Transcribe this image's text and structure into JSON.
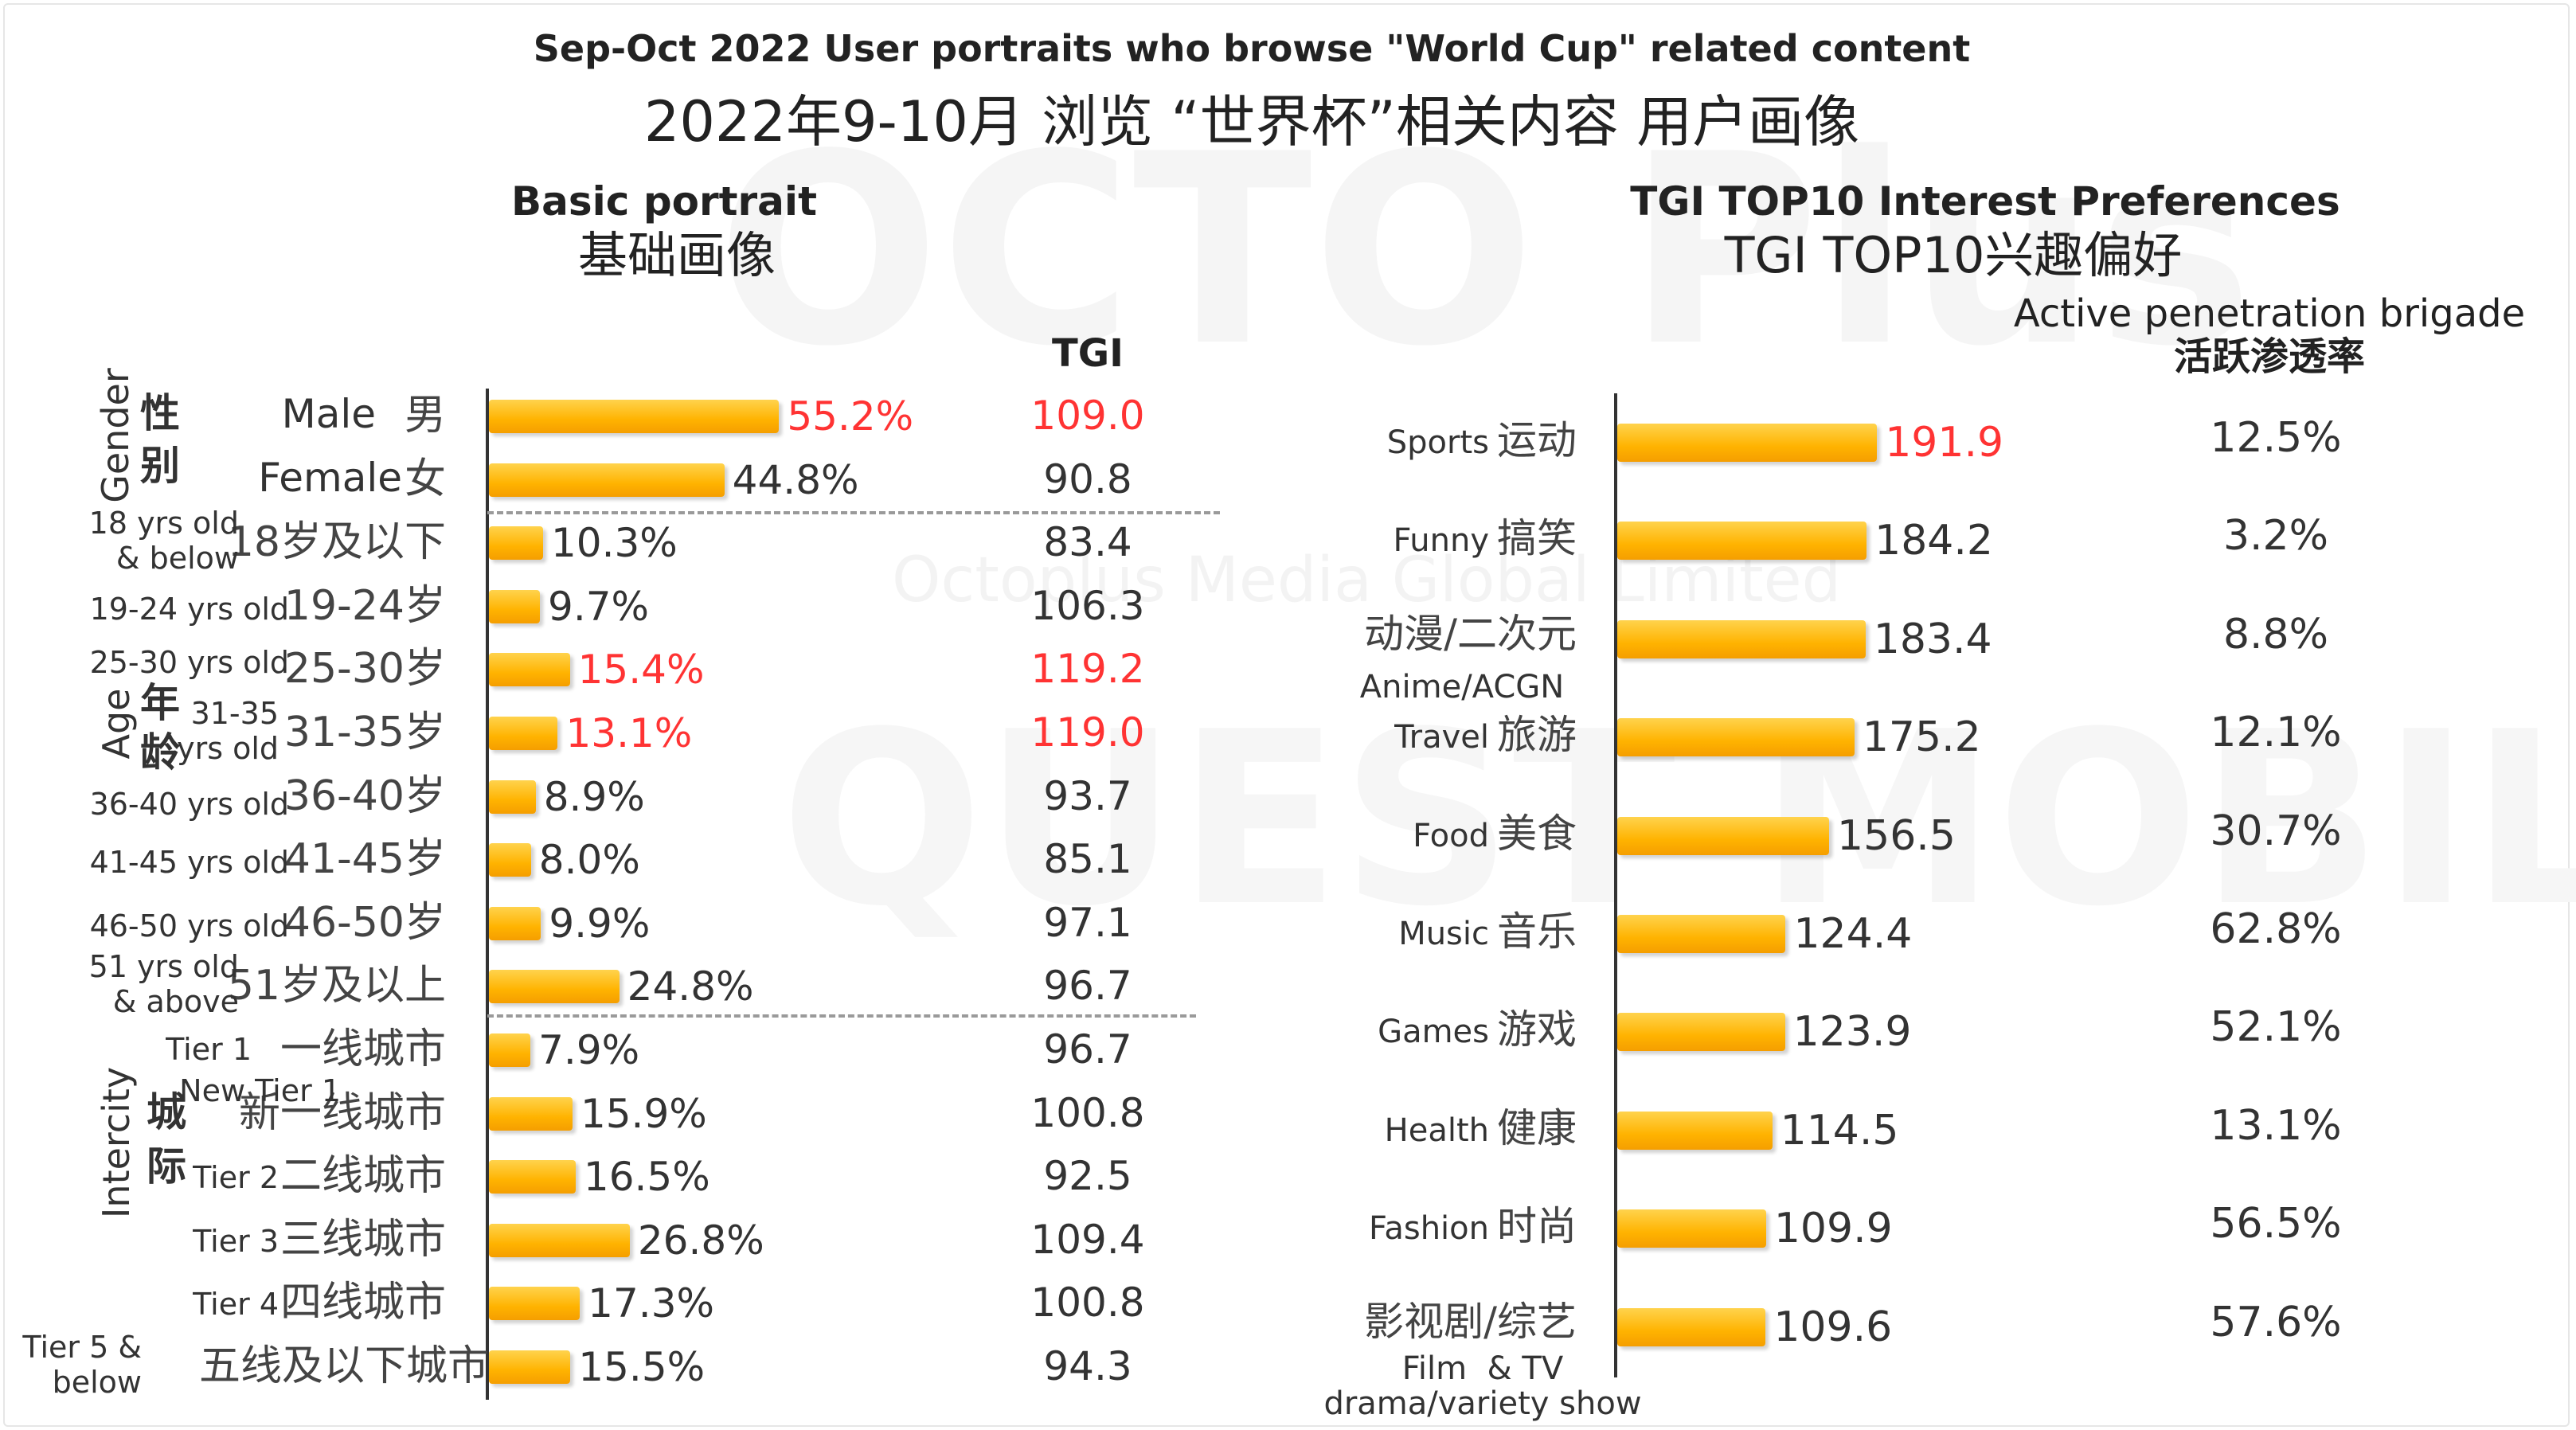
{
  "header": {
    "title_en": "Sep-Oct 2022 User portraits who browse \"World Cup\" related content",
    "title_cn": "2022年9-10月 浏览 “世界杯”相关内容 用户画像"
  },
  "watermark": {
    "logo": "OCTO Plus",
    "company": "Octoplus Media Global Limited",
    "brand": "QUEST MOBILE"
  },
  "colors": {
    "bar": "#ffb300",
    "highlight": "#ff3333",
    "text": "#333333"
  },
  "left": {
    "title_en": "Basic portrait",
    "title_cn": "基础画像",
    "tgi_header": "TGI",
    "groups": [
      {
        "en": "Gender",
        "cn1": "性",
        "cn2": "别"
      },
      {
        "en": "Age",
        "cn1": "年",
        "cn2": "龄"
      },
      {
        "en": "Intercity",
        "cn1": "城",
        "cn2": "际"
      }
    ]
  },
  "right": {
    "title_en": "TGI TOP10 Interest Preferences",
    "title_cn": "TGI TOP10兴趣偏好",
    "pen_header_en": "Active penetration brigade",
    "pen_header_cn": "活跃渗透率"
  },
  "chart_data": [
    {
      "type": "bar",
      "orientation": "horizontal",
      "title": "Basic portrait 基础画像",
      "value_label": "TGI",
      "categories": [
        {
          "group": "Gender",
          "en": "Male",
          "cn": "男",
          "share": "55.2%",
          "tgi": "109.0",
          "highlight": true
        },
        {
          "group": "Gender",
          "en": "Female",
          "cn": "女",
          "share": "44.8%",
          "tgi": "90.8",
          "highlight": false
        },
        {
          "group": "Age",
          "en": "18 yrs old & below",
          "cn": "18岁及以下",
          "share": "10.3%",
          "tgi": "83.4",
          "highlight": false
        },
        {
          "group": "Age",
          "en": "19-24 yrs old",
          "cn": "19-24岁",
          "share": "9.7%",
          "tgi": "106.3",
          "highlight": false
        },
        {
          "group": "Age",
          "en": "25-30 yrs old",
          "cn": "25-30岁",
          "share": "15.4%",
          "tgi": "119.2",
          "highlight": true
        },
        {
          "group": "Age",
          "en": "31-35 yrs old",
          "cn": "31-35岁",
          "share": "13.1%",
          "tgi": "119.0",
          "highlight": true
        },
        {
          "group": "Age",
          "en": "36-40 yrs old",
          "cn": "36-40岁",
          "share": "8.9%",
          "tgi": "93.7",
          "highlight": false
        },
        {
          "group": "Age",
          "en": "41-45 yrs old",
          "cn": "41-45岁",
          "share": "8.0%",
          "tgi": "85.1",
          "highlight": false
        },
        {
          "group": "Age",
          "en": "46-50 yrs old",
          "cn": "46-50岁",
          "share": "9.9%",
          "tgi": "97.1",
          "highlight": false
        },
        {
          "group": "Age",
          "en": "51 yrs old & above",
          "cn": "51岁及以上",
          "share": "24.8%",
          "tgi": "96.7",
          "highlight": false
        },
        {
          "group": "Intercity",
          "en": "Tier 1",
          "cn": "一线城市",
          "share": "7.9%",
          "tgi": "96.7",
          "highlight": false
        },
        {
          "group": "Intercity",
          "en": "New Tier 1",
          "cn": "新一线城市",
          "share": "15.9%",
          "tgi": "100.8",
          "highlight": false
        },
        {
          "group": "Intercity",
          "en": "Tier 2",
          "cn": "二线城市",
          "share": "16.5%",
          "tgi": "92.5",
          "highlight": false
        },
        {
          "group": "Intercity",
          "en": "Tier 3",
          "cn": "三线城市",
          "share": "26.8%",
          "tgi": "109.4",
          "highlight": false
        },
        {
          "group": "Intercity",
          "en": "Tier 4",
          "cn": "四线城市",
          "share": "17.3%",
          "tgi": "100.8",
          "highlight": false
        },
        {
          "group": "Intercity",
          "en": "Tier 5 & below",
          "cn": "五线及以下城市",
          "share": "15.5%",
          "tgi": "94.3",
          "highlight": false
        }
      ]
    },
    {
      "type": "bar",
      "orientation": "horizontal",
      "title": "TGI TOP10 Interest Preferences TGI TOP10兴趣偏好",
      "value_label": "Active penetration brigade 活跃渗透率",
      "categories": [
        {
          "en": "Sports",
          "cn": "运动",
          "tgi": "191.9",
          "penetration": "12.5%",
          "highlight": true
        },
        {
          "en": "Funny",
          "cn": "搞笑",
          "tgi": "184.2",
          "penetration": "3.2%",
          "highlight": false
        },
        {
          "en": "Anime/ACGN",
          "cn": "动漫/二次元",
          "tgi": "183.4",
          "penetration": "8.8%",
          "highlight": false
        },
        {
          "en": "Travel",
          "cn": "旅游",
          "tgi": "175.2",
          "penetration": "12.1%",
          "highlight": false
        },
        {
          "en": "Food",
          "cn": "美食",
          "tgi": "156.5",
          "penetration": "30.7%",
          "highlight": false
        },
        {
          "en": "Music",
          "cn": "音乐",
          "tgi": "124.4",
          "penetration": "62.8%",
          "highlight": false
        },
        {
          "en": "Games",
          "cn": "游戏",
          "tgi": "123.9",
          "penetration": "52.1%",
          "highlight": false
        },
        {
          "en": "Health",
          "cn": "健康",
          "tgi": "114.5",
          "penetration": "13.1%",
          "highlight": false
        },
        {
          "en": "Fashion",
          "cn": "时尚",
          "tgi": "109.9",
          "penetration": "56.5%",
          "highlight": false
        },
        {
          "en": "Film & TV drama/variety show",
          "cn": "影视剧/综艺",
          "tgi": "109.6",
          "penetration": "57.6%",
          "highlight": false
        }
      ]
    }
  ]
}
